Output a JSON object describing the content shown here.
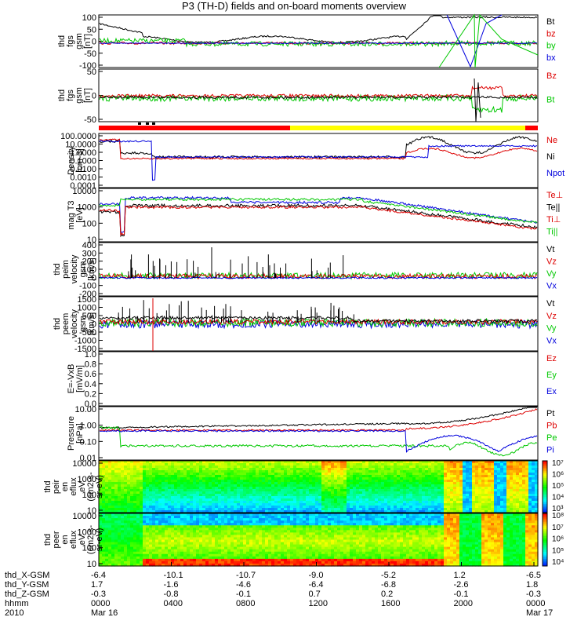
{
  "title": "P3 (TH-D) fields and on-board moments overview",
  "colors": {
    "black": "#000000",
    "red": "#dd0000",
    "green": "#00c800",
    "blue": "#0000dd",
    "yellow": "#ffff00"
  },
  "chart_data": [
    {
      "type": "line",
      "ylabel": [
        "thd",
        "fgs",
        "gsm",
        "[nT]"
      ],
      "yticks": [
        "100",
        "50",
        "0",
        "-50",
        "-100"
      ],
      "legend": [
        {
          "name": "Bt",
          "color": "black"
        },
        {
          "name": "bz",
          "color": "red"
        },
        {
          "name": "by",
          "color": "green"
        },
        {
          "name": "bx",
          "color": "blue"
        }
      ]
    },
    {
      "type": "line",
      "ylabel": [
        "thd",
        "fgs",
        "gsm",
        "[nT]"
      ],
      "yticks": [
        "50",
        "0",
        "-50"
      ],
      "legend": [
        {
          "name": "Bz",
          "color": "red"
        },
        {
          "name": "Bt",
          "color": "green"
        }
      ]
    },
    {
      "type": "line",
      "ylabel": [
        "Density",
        "[cm-3]"
      ],
      "yticks": [
        "100.0000",
        "10.0000",
        "1.0000",
        "0.1000",
        "0.0100",
        "0.0010",
        "0.0001"
      ],
      "legend": [
        {
          "name": "Ne",
          "color": "red"
        },
        {
          "name": "Ni",
          "color": "black"
        },
        {
          "name": "Npot",
          "color": "blue"
        }
      ]
    },
    {
      "type": "line",
      "ylabel": [
        "mag T3",
        "[eV]"
      ],
      "yticks": [
        "10000",
        "1000",
        "100",
        "10"
      ],
      "legend": [
        {
          "name": "Te⊥",
          "color": "red"
        },
        {
          "name": "Te||",
          "color": "black"
        },
        {
          "name": "Ti⊥",
          "color": "red"
        },
        {
          "name": "Ti||",
          "color": "green"
        }
      ]
    },
    {
      "type": "line",
      "ylabel": [
        "thd",
        "peim",
        "velocity",
        "gsm",
        "[km/s]"
      ],
      "yticks": [
        "400",
        "300",
        "200",
        "100",
        "0",
        "-100",
        "-200"
      ],
      "legend": [
        {
          "name": "Vt",
          "color": "black"
        },
        {
          "name": "Vz",
          "color": "red"
        },
        {
          "name": "Vy",
          "color": "green"
        },
        {
          "name": "Vx",
          "color": "blue"
        }
      ]
    },
    {
      "type": "line",
      "ylabel": [
        "thd",
        "peem",
        "velocity",
        "gsm",
        "[km/s]"
      ],
      "yticks": [
        "1500",
        "1000",
        "500",
        "0",
        "-500",
        "-1000",
        "-1500"
      ],
      "legend": [
        {
          "name": "Vt",
          "color": "black"
        },
        {
          "name": "Vz",
          "color": "red"
        },
        {
          "name": "Vy",
          "color": "green"
        },
        {
          "name": "Vx",
          "color": "blue"
        }
      ]
    },
    {
      "type": "line",
      "ylabel": [
        "E=-VxB",
        "[mV/m]"
      ],
      "yticks": [
        "1.0",
        "0.8",
        "0.6",
        "0.4",
        "0.2",
        "0.0"
      ],
      "legend": [
        {
          "name": "Ez",
          "color": "red"
        },
        {
          "name": "Ey",
          "color": "green"
        },
        {
          "name": "Ex",
          "color": "blue"
        }
      ]
    },
    {
      "type": "line",
      "ylabel": [
        "Pressure",
        "[nPa]"
      ],
      "yticks": [
        "10.00",
        "1.00",
        "0.10",
        "0.01"
      ],
      "legend": [
        {
          "name": "Pt",
          "color": "black"
        },
        {
          "name": "Pb",
          "color": "red"
        },
        {
          "name": "Pe",
          "color": "green"
        },
        {
          "name": "Pi",
          "color": "blue"
        }
      ]
    },
    {
      "type": "heatmap",
      "ylabel": [
        "thd",
        "peir",
        "en",
        "eflux",
        "eV",
        "(cm2-s-",
        "sr-eV)"
      ],
      "yticks": [
        "10000",
        "1000",
        "100",
        "10"
      ],
      "colorbar": [
        "10⁷",
        "10⁶",
        "10⁵",
        "10⁴",
        "10³"
      ]
    },
    {
      "type": "heatmap",
      "ylabel": [
        "thd",
        "peer",
        "en",
        "eflux",
        "eV",
        "(cm2-s-",
        "sr-eV)"
      ],
      "yticks": [
        "10000",
        "1000",
        "100",
        "10"
      ],
      "colorbar": [
        "10⁸",
        "10⁷",
        "10⁶",
        "10⁵",
        "10⁴"
      ]
    }
  ],
  "xaxis": {
    "rows": [
      {
        "label": "thd_X-GSM",
        "values": [
          "-6.4",
          "-10.1",
          "-10.7",
          "-9.0",
          "-5.2",
          "1.2",
          "-6.5"
        ]
      },
      {
        "label": "thd_Y-GSM",
        "values": [
          "1.7",
          "-1.6",
          "-4.6",
          "-6.4",
          "-6.8",
          "-2.6",
          "1.8"
        ]
      },
      {
        "label": "thd_Z-GSM",
        "values": [
          "-0.3",
          "-0.8",
          "-0.1",
          "0.7",
          "0.2",
          "-0.1",
          "-0.3"
        ]
      },
      {
        "label": "hhmm",
        "values": [
          "0000",
          "0400",
          "0800",
          "1200",
          "1600",
          "2000",
          "0000"
        ]
      },
      {
        "label": "2010",
        "values": [
          "Mar 16",
          "",
          "",
          "",
          "",
          "",
          "Mar 17"
        ]
      }
    ]
  }
}
